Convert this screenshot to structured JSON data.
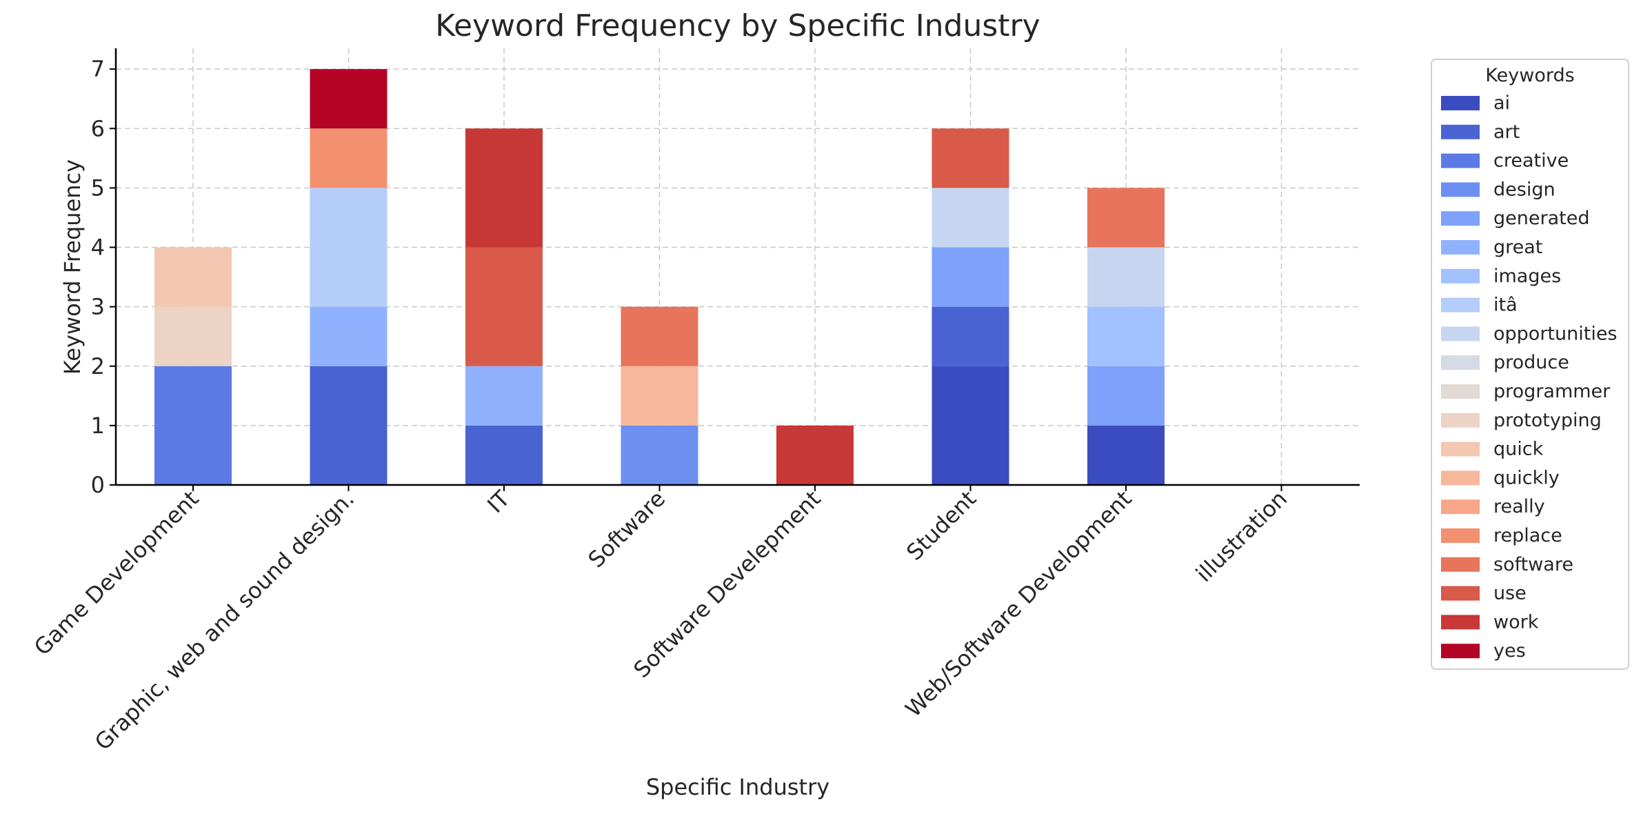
{
  "chart_data": {
    "type": "bar",
    "stacked": true,
    "title": "Keyword Frequency by Specific Industry",
    "xlabel": "Specific Industry",
    "ylabel": "Keyword Frequency",
    "ylim": [
      0,
      7.35
    ],
    "yticks": [
      "0",
      "1",
      "2",
      "3",
      "4",
      "5",
      "6",
      "7"
    ],
    "grid": true,
    "legend": {
      "title": "Keywords",
      "placement": "outside-right"
    },
    "categories": [
      "Game Development",
      "Graphic, web and sound design.",
      "IT",
      "Software",
      "Software Develepment",
      "Student",
      "Web/Software Development",
      "illustration"
    ],
    "series": [
      {
        "name": "ai",
        "color": "#3b4cc0",
        "values": [
          0,
          0,
          0,
          0,
          0,
          2,
          1,
          0
        ]
      },
      {
        "name": "art",
        "color": "#4a63d3",
        "values": [
          0,
          2,
          1,
          0,
          0,
          1,
          0,
          0
        ]
      },
      {
        "name": "creative",
        "color": "#5b7ae5",
        "values": [
          2,
          0,
          0,
          0,
          0,
          0,
          0,
          0
        ]
      },
      {
        "name": "design",
        "color": "#6c8ff1",
        "values": [
          0,
          0,
          0,
          1,
          0,
          0,
          0,
          0
        ]
      },
      {
        "name": "generated",
        "color": "#7ea1fa",
        "values": [
          0,
          0,
          0,
          0,
          0,
          1,
          1,
          0
        ]
      },
      {
        "name": "great",
        "color": "#90b2fe",
        "values": [
          0,
          1,
          1,
          0,
          0,
          0,
          0,
          0
        ]
      },
      {
        "name": "images",
        "color": "#a2c1ff",
        "values": [
          0,
          0,
          0,
          0,
          0,
          0,
          1,
          0
        ]
      },
      {
        "name": "itâ",
        "color": "#b5cdfa",
        "values": [
          0,
          2,
          0,
          0,
          0,
          0,
          0,
          0
        ]
      },
      {
        "name": "opportunities",
        "color": "#c6d6f1",
        "values": [
          0,
          0,
          0,
          0,
          0,
          1,
          1,
          0
        ]
      },
      {
        "name": "produce",
        "color": "#d5dbe5",
        "values": [
          0,
          0,
          0,
          0,
          0,
          0,
          0,
          0
        ]
      },
      {
        "name": "programmer",
        "color": "#e2dad5",
        "values": [
          0,
          0,
          0,
          0,
          0,
          0,
          0,
          0
        ]
      },
      {
        "name": "prototyping",
        "color": "#ecd3c5",
        "values": [
          1,
          0,
          0,
          0,
          0,
          0,
          0,
          0
        ]
      },
      {
        "name": "quick",
        "color": "#f3c7b1",
        "values": [
          1,
          0,
          0,
          0,
          0,
          0,
          0,
          0
        ]
      },
      {
        "name": "quickly",
        "color": "#f6b79b",
        "values": [
          0,
          0,
          0,
          1,
          0,
          0,
          0,
          0
        ]
      },
      {
        "name": "really",
        "color": "#f7a688",
        "values": [
          0,
          0,
          0,
          0,
          0,
          0,
          0,
          0
        ]
      },
      {
        "name": "replace",
        "color": "#f2906f",
        "values": [
          0,
          1,
          0,
          0,
          0,
          0,
          0,
          0
        ]
      },
      {
        "name": "software",
        "color": "#e7745b",
        "values": [
          0,
          0,
          0,
          1,
          0,
          0,
          1,
          0
        ]
      },
      {
        "name": "use",
        "color": "#da5a49",
        "values": [
          0,
          0,
          2,
          0,
          0,
          1,
          0,
          0
        ]
      },
      {
        "name": "work",
        "color": "#c83836",
        "values": [
          0,
          0,
          2,
          0,
          1,
          0,
          0,
          0
        ]
      },
      {
        "name": "yes",
        "color": "#b40426",
        "values": [
          0,
          1,
          0,
          0,
          0,
          0,
          0,
          0
        ]
      }
    ]
  }
}
